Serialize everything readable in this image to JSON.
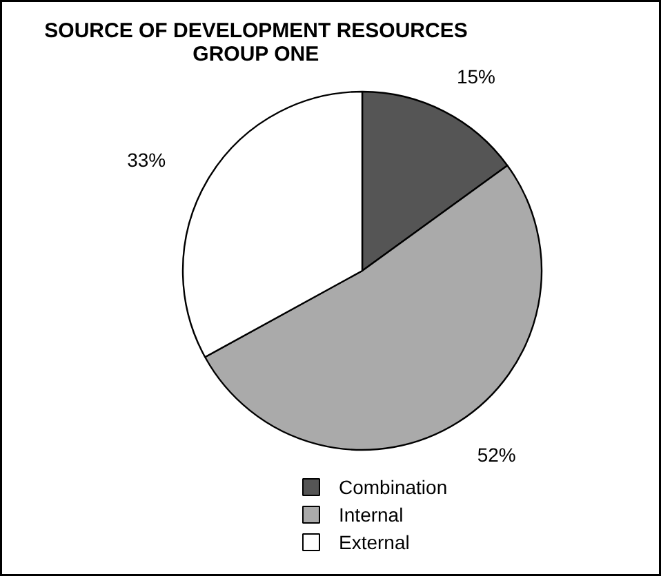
{
  "chart_data": {
    "type": "pie",
    "title": "SOURCE OF DEVELOPMENT RESOURCES\nGROUP ONE",
    "categories": [
      "Combination",
      "Internal",
      "External"
    ],
    "values": [
      15,
      52,
      33
    ],
    "value_labels": [
      "15%",
      "52%",
      "33%"
    ],
    "colors": [
      "#555555",
      "#aaaaaa",
      "#ffffff"
    ],
    "legend": "bottom"
  }
}
